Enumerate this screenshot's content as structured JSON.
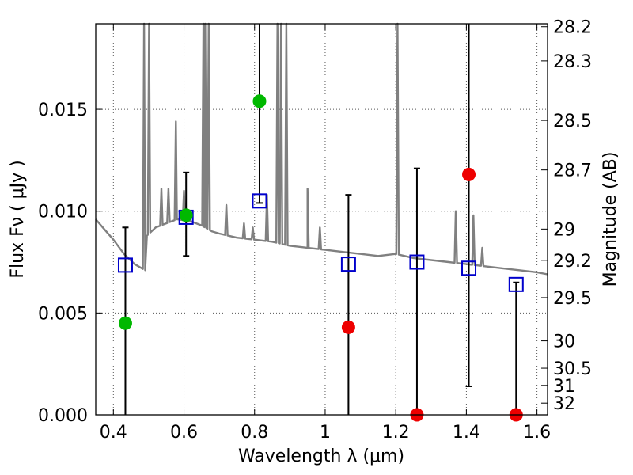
{
  "chart_data": {
    "type": "scatter",
    "xlabel": "Wavelength  λ (μm)",
    "ylabel": "Flux  Fν  ( μJy )",
    "y2label": "Magnitude (AB)",
    "xlim": [
      0.35,
      1.63
    ],
    "ylim": [
      0.0,
      0.0192
    ],
    "grid": true,
    "x_ticks": [
      {
        "v": 0.4,
        "label": "0.4"
      },
      {
        "v": 0.6,
        "label": "0.6"
      },
      {
        "v": 0.8,
        "label": "0.8"
      },
      {
        "v": 1.0,
        "label": "1"
      },
      {
        "v": 1.2,
        "label": "1.2"
      },
      {
        "v": 1.4,
        "label": "1.4"
      },
      {
        "v": 1.6,
        "label": "1.6"
      }
    ],
    "y_ticks": [
      {
        "v": 0.0,
        "label": "0.000"
      },
      {
        "v": 0.005,
        "label": "0.005"
      },
      {
        "v": 0.01,
        "label": "0.010"
      },
      {
        "v": 0.015,
        "label": "0.015"
      }
    ],
    "mag_ticks": [
      {
        "mag": 28.2,
        "label": "28.2"
      },
      {
        "mag": 28.3,
        "label": "28.3"
      },
      {
        "mag": 28.5,
        "label": "28.5"
      },
      {
        "mag": 28.7,
        "label": "28.7"
      },
      {
        "mag": 29.0,
        "label": "29"
      },
      {
        "mag": 29.2,
        "label": "29.2"
      },
      {
        "mag": 29.5,
        "label": "29.5"
      },
      {
        "mag": 30.0,
        "label": "30"
      },
      {
        "mag": 30.5,
        "label": "30.5"
      },
      {
        "mag": 31.0,
        "label": "31"
      },
      {
        "mag": 32.0,
        "label": "32"
      }
    ],
    "model_points": [
      {
        "x": 0.434,
        "y": 0.00735
      },
      {
        "x": 0.606,
        "y": 0.0097
      },
      {
        "x": 0.814,
        "y": 0.0105
      },
      {
        "x": 1.066,
        "y": 0.0074
      },
      {
        "x": 1.26,
        "y": 0.0075
      },
      {
        "x": 1.407,
        "y": 0.0072
      },
      {
        "x": 1.541,
        "y": 0.0064
      }
    ],
    "observed_points": [
      {
        "x": 0.434,
        "y": 0.0045,
        "yerr_low": 0.0045,
        "yerr_high": 0.0047,
        "detected": true
      },
      {
        "x": 0.606,
        "y": 0.0098,
        "yerr_low": 0.002,
        "yerr_high": 0.0021,
        "detected": true
      },
      {
        "x": 0.814,
        "y": 0.0154,
        "yerr_low": 0.005,
        "yerr_high": 0.0038,
        "detected": true
      },
      {
        "x": 1.066,
        "y": 0.0043,
        "yerr_low": 0.0043,
        "yerr_high": 0.0065,
        "detected": false
      },
      {
        "x": 1.26,
        "y": 0.0,
        "yerr_low": 0.0,
        "yerr_high": 0.0121,
        "detected": false
      },
      {
        "x": 1.407,
        "y": 0.0118,
        "yerr_low": 0.0104,
        "yerr_high": 0.0074,
        "detected": false
      },
      {
        "x": 1.541,
        "y": 0.0,
        "yerr_low": 0.0,
        "yerr_high": 0.0065,
        "detected": false
      }
    ],
    "sed_continuum": [
      [
        0.35,
        0.0096
      ],
      [
        0.37,
        0.0092
      ],
      [
        0.4,
        0.0086
      ],
      [
        0.43,
        0.0079
      ],
      [
        0.46,
        0.0074
      ],
      [
        0.49,
        0.0071
      ],
      [
        0.495,
        0.0088
      ],
      [
        0.52,
        0.0092
      ],
      [
        0.55,
        0.0094
      ],
      [
        0.58,
        0.0096
      ],
      [
        0.62,
        0.0095
      ],
      [
        0.65,
        0.0093
      ],
      [
        0.68,
        0.009
      ],
      [
        0.7,
        0.0089
      ],
      [
        0.75,
        0.0087
      ],
      [
        0.8,
        0.0086
      ],
      [
        0.85,
        0.0085
      ],
      [
        0.9,
        0.0083
      ],
      [
        0.95,
        0.0082
      ],
      [
        1.0,
        0.0081
      ],
      [
        1.05,
        0.008
      ],
      [
        1.1,
        0.0079
      ],
      [
        1.15,
        0.0078
      ],
      [
        1.2,
        0.0079
      ],
      [
        1.25,
        0.0077
      ],
      [
        1.3,
        0.0076
      ],
      [
        1.35,
        0.0075
      ],
      [
        1.4,
        0.0074
      ],
      [
        1.45,
        0.0073
      ],
      [
        1.5,
        0.0072
      ],
      [
        1.55,
        0.0071
      ],
      [
        1.6,
        0.007
      ],
      [
        1.63,
        0.0069
      ]
    ],
    "sed_lines": [
      {
        "x": 0.487,
        "h": 0.02
      },
      {
        "x": 0.501,
        "h": 0.02
      },
      {
        "x": 0.536,
        "h": 0.0111
      },
      {
        "x": 0.556,
        "h": 0.0111
      },
      {
        "x": 0.577,
        "h": 0.0144
      },
      {
        "x": 0.6,
        "h": 0.011
      },
      {
        "x": 0.655,
        "h": 0.02
      },
      {
        "x": 0.66,
        "h": 0.02
      },
      {
        "x": 0.67,
        "h": 0.02
      },
      {
        "x": 0.72,
        "h": 0.0103
      },
      {
        "x": 0.77,
        "h": 0.0094
      },
      {
        "x": 0.795,
        "h": 0.0092
      },
      {
        "x": 0.835,
        "h": 0.0108
      },
      {
        "x": 0.865,
        "h": 0.02
      },
      {
        "x": 0.875,
        "h": 0.02
      },
      {
        "x": 0.89,
        "h": 0.02
      },
      {
        "x": 0.95,
        "h": 0.0111
      },
      {
        "x": 0.985,
        "h": 0.0092
      },
      {
        "x": 1.205,
        "h": 0.02
      },
      {
        "x": 1.37,
        "h": 0.01
      },
      {
        "x": 1.42,
        "h": 0.0098
      },
      {
        "x": 1.445,
        "h": 0.0082
      }
    ],
    "colors": {
      "sed": "#808080",
      "model_marker": "#0000cc",
      "detected_marker": "#00b800",
      "nondetected_marker": "#ee0000",
      "errorbar": "#000000",
      "grid": "#555555"
    }
  }
}
